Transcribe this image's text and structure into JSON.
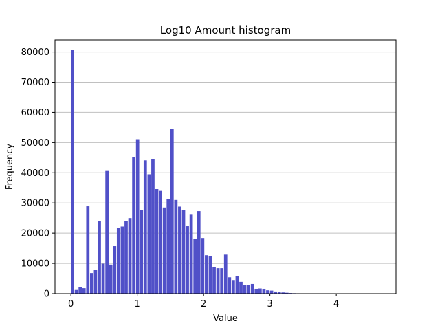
{
  "chart_data": {
    "type": "bar",
    "title": "Log10 Amount histogram",
    "xlabel": "Value",
    "ylabel": "Frequency",
    "xlim": [
      -0.24,
      4.9
    ],
    "ylim": [
      0,
      84000
    ],
    "xticks": [
      0,
      1,
      2,
      3,
      4
    ],
    "yticks": [
      0,
      10000,
      20000,
      30000,
      40000,
      50000,
      60000,
      70000,
      80000
    ],
    "grid": "horizontal",
    "bar_color": "#5050C8",
    "bin_start": 0,
    "bin_width": 0.0577,
    "values": [
      80600,
      1200,
      2200,
      1800,
      28900,
      6800,
      7800,
      24000,
      9900,
      40600,
      9600,
      15700,
      21800,
      22200,
      24100,
      25000,
      45300,
      51100,
      27600,
      44100,
      39500,
      44600,
      34600,
      34000,
      28500,
      31300,
      54500,
      31000,
      28800,
      27700,
      22300,
      26100,
      18200,
      27300,
      18400,
      12700,
      12300,
      8800,
      8400,
      8400,
      12900,
      5400,
      4500,
      5700,
      3900,
      2800,
      2900,
      3200,
      1600,
      1700,
      1600,
      1100,
      1000,
      700,
      600,
      400,
      300,
      200,
      150,
      120,
      100,
      80,
      60,
      50,
      40,
      30,
      20,
      15,
      10,
      8,
      6,
      5,
      4,
      3,
      2,
      2,
      1,
      1,
      1,
      1,
      1
    ]
  }
}
